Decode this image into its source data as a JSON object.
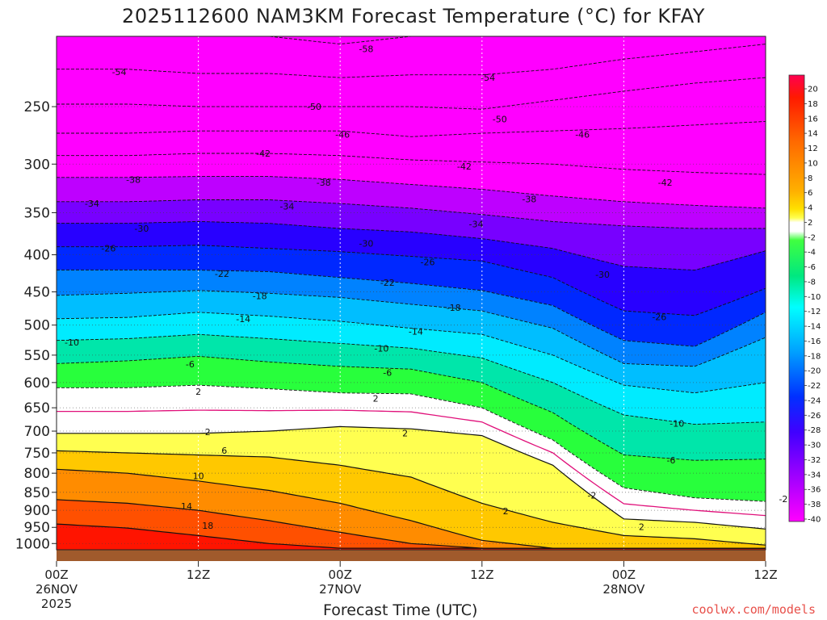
{
  "title": "2025112600 NAM3KM Forecast Temperature (°C) for KFAY",
  "xlabel": "Forecast Time (UTC)",
  "credit": "coolwx.com/models",
  "chart_data": {
    "type": "heatmap",
    "title": "2025112600 NAM3KM Forecast Temperature (°C) for KFAY",
    "xlabel": "Forecast Time (UTC)",
    "ylabel": "",
    "x_ticks": [
      {
        "hour": 0,
        "lines": [
          "00Z",
          "26NOV",
          "2025"
        ]
      },
      {
        "hour": 12,
        "lines": [
          "12Z"
        ]
      },
      {
        "hour": 24,
        "lines": [
          "00Z",
          "27NOV"
        ]
      },
      {
        "hour": 36,
        "lines": [
          "12Z"
        ]
      },
      {
        "hour": 48,
        "lines": [
          "00Z",
          "28NOV"
        ]
      },
      {
        "hour": 60,
        "lines": [
          "12Z"
        ]
      }
    ],
    "xlim_hours": [
      0,
      60
    ],
    "y_axis": "pressure (hPa), log-scaled, reversed",
    "y_ticks": [
      250,
      300,
      350,
      400,
      450,
      500,
      550,
      600,
      650,
      700,
      750,
      800,
      850,
      900,
      950,
      1000
    ],
    "ylim_hPa": [
      200,
      1020
    ],
    "surface_fill_color": "#a05a2c",
    "colorbar_labels": [
      20,
      18,
      16,
      14,
      12,
      10,
      8,
      6,
      4,
      2,
      -2,
      -4,
      -6,
      -8,
      -10,
      -12,
      -14,
      -16,
      -18,
      -20,
      -22,
      -24,
      -26,
      -28,
      -30,
      -32,
      -34,
      -36,
      -38,
      -40
    ],
    "freezing_line_color": "#e0107a",
    "contour_levels": [
      -58,
      -54,
      -50,
      -46,
      -42,
      -38,
      -34,
      -30,
      -26,
      -22,
      -18,
      -14,
      -10,
      -6,
      -2,
      2,
      6,
      10,
      14,
      18
    ],
    "isotherm_samples": {
      "hours": [
        0,
        6,
        12,
        18,
        24,
        30,
        36,
        42,
        48,
        54,
        60
      ],
      "levels": {
        "-58": [
          200,
          200,
          200,
          200,
          205,
          200,
          200,
          200,
          200,
          200,
          200
        ],
        "-54": [
          222,
          222,
          225,
          225,
          228,
          226,
          226,
          222,
          215,
          210,
          205
        ],
        "-50": [
          248,
          248,
          250,
          250,
          250,
          250,
          252,
          245,
          238,
          232,
          228
        ],
        "-46": [
          272,
          272,
          270,
          270,
          270,
          275,
          272,
          270,
          268,
          265,
          262
        ],
        "-42": [
          292,
          292,
          290,
          290,
          292,
          296,
          298,
          300,
          305,
          308,
          310
        ],
        "-38": [
          313,
          313,
          312,
          312,
          315,
          320,
          325,
          332,
          338,
          342,
          345
        ],
        "-34": [
          338,
          338,
          336,
          336,
          340,
          345,
          352,
          360,
          365,
          368,
          368
        ],
        "-30": [
          362,
          362,
          360,
          362,
          368,
          372,
          380,
          392,
          415,
          420,
          395
        ],
        "-26": [
          390,
          390,
          388,
          392,
          396,
          402,
          408,
          430,
          478,
          485,
          445
        ],
        "-22": [
          420,
          420,
          420,
          422,
          430,
          438,
          448,
          470,
          525,
          535,
          480
        ],
        "-18": [
          455,
          452,
          448,
          452,
          458,
          468,
          478,
          505,
          565,
          570,
          520
        ],
        "-14": [
          490,
          488,
          480,
          486,
          494,
          505,
          515,
          550,
          605,
          620,
          600
        ],
        "-10": [
          525,
          522,
          515,
          522,
          530,
          538,
          555,
          600,
          665,
          685,
          680
        ],
        "-6": [
          565,
          560,
          552,
          562,
          570,
          575,
          600,
          660,
          755,
          768,
          765
        ],
        "-2": [
          610,
          610,
          605,
          612,
          620,
          622,
          650,
          720,
          838,
          865,
          875
        ],
        "2": [
          705,
          705,
          705,
          700,
          690,
          695,
          710,
          780,
          925,
          935,
          955
        ],
        "6": [
          745,
          750,
          755,
          760,
          780,
          810,
          880,
          935,
          975,
          985,
          1005
        ],
        "10": [
          790,
          800,
          820,
          845,
          880,
          930,
          990,
          1015,
          1015,
          1015,
          1015
        ],
        "14": [
          870,
          880,
          900,
          930,
          965,
          1000,
          1015,
          1015,
          1015,
          1015,
          1015
        ],
        "18": [
          940,
          952,
          975,
          1000,
          1015,
          1015,
          1015,
          1015,
          1015,
          1015,
          1015
        ]
      }
    },
    "contour_labels": [
      {
        "text": "-58",
        "hour": 26.2,
        "hPa": 208
      },
      {
        "text": "-54",
        "hour": 5.3,
        "hPa": 224
      },
      {
        "text": "-54",
        "hour": 36.5,
        "hPa": 228
      },
      {
        "text": "-50",
        "hour": 21.8,
        "hPa": 250
      },
      {
        "text": "-50",
        "hour": 37.5,
        "hPa": 260
      },
      {
        "text": "-46",
        "hour": 24.2,
        "hPa": 273
      },
      {
        "text": "-46",
        "hour": 44.5,
        "hPa": 273
      },
      {
        "text": "-42",
        "hour": 17.5,
        "hPa": 290
      },
      {
        "text": "-42",
        "hour": 34.5,
        "hPa": 302
      },
      {
        "text": "-42",
        "hour": 51.5,
        "hPa": 318
      },
      {
        "text": "-38",
        "hour": 6.5,
        "hPa": 315
      },
      {
        "text": "-38",
        "hour": 22.6,
        "hPa": 318
      },
      {
        "text": "-38",
        "hour": 40.0,
        "hPa": 335
      },
      {
        "text": "-34",
        "hour": 3.0,
        "hPa": 340
      },
      {
        "text": "-34",
        "hour": 19.5,
        "hPa": 343
      },
      {
        "text": "-34",
        "hour": 35.5,
        "hPa": 363
      },
      {
        "text": "-30",
        "hour": 7.2,
        "hPa": 368
      },
      {
        "text": "-30",
        "hour": 26.2,
        "hPa": 386
      },
      {
        "text": "-30",
        "hour": 46.2,
        "hPa": 426
      },
      {
        "text": "-26",
        "hour": 4.4,
        "hPa": 392
      },
      {
        "text": "-26",
        "hour": 31.4,
        "hPa": 409
      },
      {
        "text": "-26",
        "hour": 51.0,
        "hPa": 487
      },
      {
        "text": "-22",
        "hour": 14.0,
        "hPa": 425
      },
      {
        "text": "-22",
        "hour": 28.0,
        "hPa": 437
      },
      {
        "text": "-18",
        "hour": 17.2,
        "hPa": 456
      },
      {
        "text": "-18",
        "hour": 33.6,
        "hPa": 473
      },
      {
        "text": "-14",
        "hour": 15.8,
        "hPa": 490
      },
      {
        "text": "-14",
        "hour": 30.4,
        "hPa": 510
      },
      {
        "text": "-10",
        "hour": 1.3,
        "hPa": 528
      },
      {
        "text": "-10",
        "hour": 27.5,
        "hPa": 538
      },
      {
        "text": "-10",
        "hour": 52.5,
        "hPa": 683
      },
      {
        "text": "-6",
        "hour": 11.3,
        "hPa": 566
      },
      {
        "text": "-6",
        "hour": 28.0,
        "hPa": 581
      },
      {
        "text": "-6",
        "hour": 52.0,
        "hPa": 768
      },
      {
        "text": "-2",
        "hour": 45.3,
        "hPa": 858
      },
      {
        "text": "-2",
        "hour": 61.5,
        "hPa": 868
      },
      {
        "text": "2",
        "hour": 12.0,
        "hPa": 617
      },
      {
        "text": "2",
        "hour": 27.0,
        "hPa": 631
      },
      {
        "text": "2",
        "hour": 12.8,
        "hPa": 702
      },
      {
        "text": "2",
        "hour": 29.5,
        "hPa": 704
      },
      {
        "text": "2",
        "hour": 38.0,
        "hPa": 902
      },
      {
        "text": "2",
        "hour": 49.5,
        "hPa": 948
      },
      {
        "text": "6",
        "hour": 14.2,
        "hPa": 744
      },
      {
        "text": "10",
        "hour": 12.0,
        "hPa": 807
      },
      {
        "text": "14",
        "hour": 11.0,
        "hPa": 888
      },
      {
        "text": "18",
        "hour": 12.8,
        "hPa": 944
      }
    ]
  }
}
